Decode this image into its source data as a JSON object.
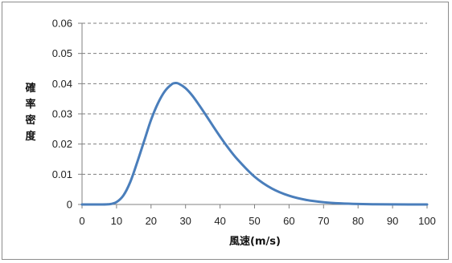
{
  "chart_data": {
    "type": "line",
    "xlabel": "風速(m/s)",
    "ylabel": "確率密度",
    "xlim": [
      0,
      100
    ],
    "ylim": [
      0,
      0.06
    ],
    "x_ticks": [
      "0",
      "10",
      "20",
      "30",
      "40",
      "50",
      "60",
      "70",
      "80",
      "90",
      "100"
    ],
    "y_ticks": [
      "0",
      "0.01",
      "0.02",
      "0.03",
      "0.04",
      "0.05",
      "0.06"
    ],
    "grid": "horizontal-dashed",
    "series_color": "#4a7ebb",
    "series": [
      {
        "x": [
          0,
          5,
          8,
          10,
          12,
          14,
          16,
          18,
          20,
          22,
          24,
          26,
          27,
          28,
          30,
          32,
          34,
          36,
          38,
          40,
          42,
          45,
          50,
          55,
          60,
          65,
          70,
          75,
          80,
          85,
          90,
          95,
          100
        ],
        "values": [
          0,
          0,
          0.0001,
          0.0008,
          0.003,
          0.0075,
          0.014,
          0.021,
          0.028,
          0.0335,
          0.0375,
          0.0398,
          0.0402,
          0.04,
          0.0385,
          0.036,
          0.0328,
          0.0294,
          0.0259,
          0.0225,
          0.0193,
          0.015,
          0.0092,
          0.0053,
          0.0029,
          0.0015,
          0.00075,
          0.00036,
          0.00016,
          7e-05,
          3e-05,
          1e-05,
          0
        ]
      }
    ]
  }
}
